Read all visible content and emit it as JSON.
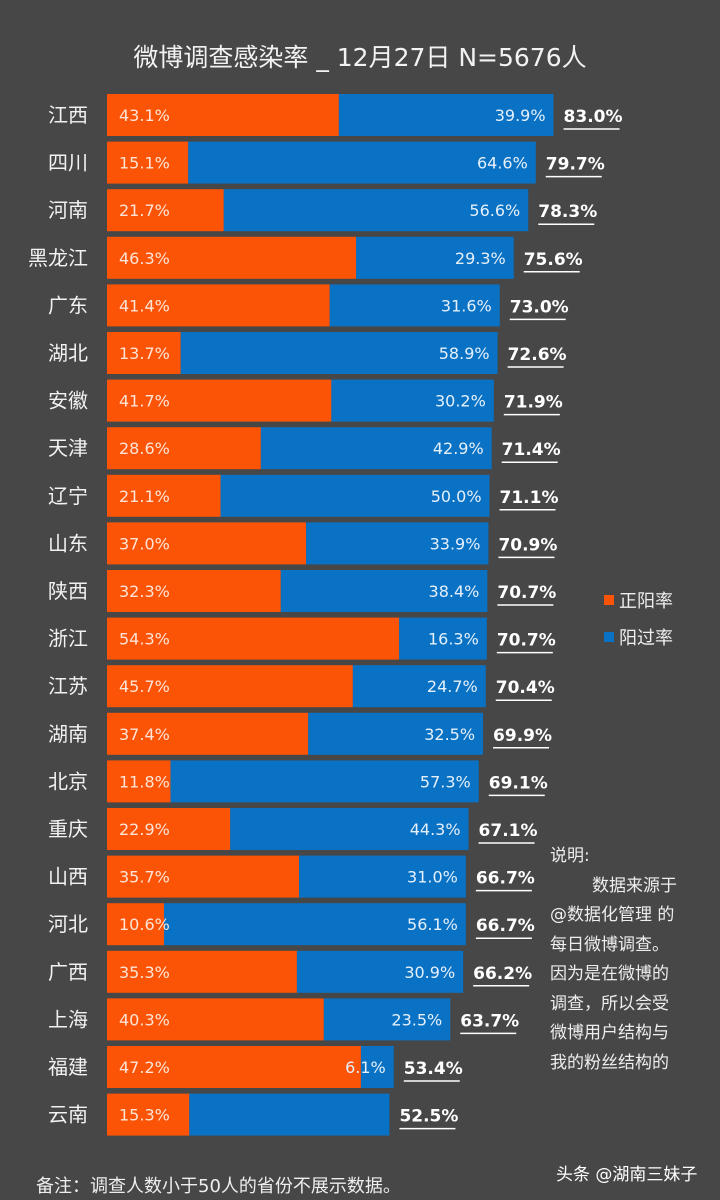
{
  "chart_data": {
    "type": "bar",
    "stacked": true,
    "orientation": "horizontal",
    "title": "微博调查感染率 _ 12月27日 N=5676人",
    "categories": [
      "江西",
      "四川",
      "河南",
      "黑龙江",
      "广东",
      "湖北",
      "安徽",
      "天津",
      "辽宁",
      "山东",
      "陕西",
      "浙江",
      "江苏",
      "湖南",
      "北京",
      "重庆",
      "山西",
      "河北",
      "广西",
      "上海",
      "福建",
      "云南"
    ],
    "series": [
      {
        "name": "正阳率",
        "color": "#fb5407",
        "values": [
          43.1,
          15.1,
          21.7,
          46.3,
          41.4,
          13.7,
          41.7,
          28.6,
          21.1,
          37.0,
          32.3,
          54.3,
          45.7,
          37.4,
          11.8,
          22.9,
          35.7,
          10.6,
          35.3,
          40.3,
          47.2,
          15.3
        ],
        "labels": [
          "43.1%",
          "15.1%",
          "21.7%",
          "46.3%",
          "41.4%",
          "13.7%",
          "41.7%",
          "28.6%",
          "21.1%",
          "37.0%",
          "32.3%",
          "54.3%",
          "45.7%",
          "37.4%",
          "11.8%",
          "22.9%",
          "35.7%",
          "10.6%",
          "35.3%",
          "40.3%",
          "47.2%",
          "15.3%"
        ]
      },
      {
        "name": "阳过率",
        "color": "#0a72c4",
        "values": [
          39.9,
          64.6,
          56.6,
          29.3,
          31.6,
          58.9,
          30.2,
          42.9,
          50.0,
          33.9,
          38.4,
          16.3,
          24.7,
          32.5,
          57.3,
          44.3,
          31.0,
          56.1,
          30.9,
          23.5,
          6.1,
          37.2
        ],
        "labels": [
          "39.9%",
          "64.6%",
          "56.6%",
          "29.3%",
          "31.6%",
          "58.9%",
          "30.2%",
          "42.9%",
          "50.0%",
          "33.9%",
          "38.4%",
          "16.3%",
          "24.7%",
          "32.5%",
          "57.3%",
          "44.3%",
          "31.0%",
          "56.1%",
          "30.9%",
          "23.5%",
          "6.1%",
          ""
        ]
      }
    ],
    "totals": [
      "83.0%",
      "79.7%",
      "78.3%",
      "75.6%",
      "73.0%",
      "72.6%",
      "71.9%",
      "71.4%",
      "71.1%",
      "70.9%",
      "70.7%",
      "70.7%",
      "70.4%",
      "69.9%",
      "69.1%",
      "67.1%",
      "66.7%",
      "66.7%",
      "66.2%",
      "63.7%",
      "53.4%",
      "52.5%"
    ],
    "legend_position": "right",
    "grid": false
  },
  "notes": {
    "heading": "说明:",
    "lines": [
      "    数据来源于",
      "@数据化管理 的",
      "每日微博调查。",
      "因为是在微博的",
      "调查，所以会受",
      "微博用户结构与",
      "我的粉丝结构的"
    ]
  },
  "footnote": "备注：调查人数小于50人的省份不展示数据。",
  "watermark": "头条 @湖南三妹子"
}
